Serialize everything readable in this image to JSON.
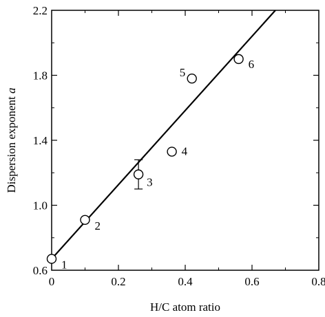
{
  "chart_data": {
    "type": "scatter",
    "title": "",
    "xlabel": "H/C atom ratio",
    "ylabel_main": "Dispersion exponent ",
    "ylabel_var": "a",
    "xlim": [
      0,
      0.8
    ],
    "ylim": [
      0.6,
      2.2
    ],
    "xticks": [
      "0",
      "0.2",
      "0.4",
      "0.6",
      "0.8"
    ],
    "yticks": [
      "0.6",
      "1.0",
      "1.4",
      "1.8",
      "2.2"
    ],
    "grid": false,
    "points": [
      {
        "label": "1",
        "x": 0.0,
        "y": 0.67
      },
      {
        "label": "2",
        "x": 0.1,
        "y": 0.91
      },
      {
        "label": "3",
        "x": 0.26,
        "y": 1.19,
        "err_low": 1.1,
        "err_high": 1.28
      },
      {
        "label": "4",
        "x": 0.36,
        "y": 1.33
      },
      {
        "label": "5",
        "x": 0.42,
        "y": 1.78
      },
      {
        "label": "6",
        "x": 0.56,
        "y": 1.9
      }
    ],
    "fit_line": {
      "x": [
        0.0,
        0.67
      ],
      "y": [
        0.67,
        2.2
      ]
    }
  }
}
